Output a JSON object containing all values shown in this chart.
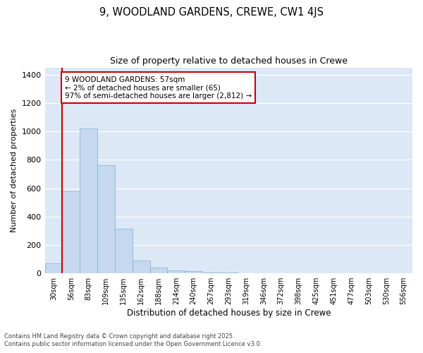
{
  "title1": "9, WOODLAND GARDENS, CREWE, CW1 4JS",
  "title2": "Size of property relative to detached houses in Crewe",
  "xlabel": "Distribution of detached houses by size in Crewe",
  "ylabel": "Number of detached properties",
  "bar_color": "#c5d8f0",
  "bar_edge_color": "#7bafd4",
  "background_color": "#dce8f5",
  "grid_color": "#ffffff",
  "annotation_box_color": "#cc0000",
  "annotation_text": "9 WOODLAND GARDENS: 57sqm\n← 2% of detached houses are smaller (65)\n97% of semi-detached houses are larger (2,812) →",
  "vline_color": "#cc0000",
  "vline_pos": 1,
  "bins": [
    "30sqm",
    "56sqm",
    "83sqm",
    "109sqm",
    "135sqm",
    "162sqm",
    "188sqm",
    "214sqm",
    "240sqm",
    "267sqm",
    "293sqm",
    "319sqm",
    "346sqm",
    "372sqm",
    "398sqm",
    "425sqm",
    "451sqm",
    "477sqm",
    "503sqm",
    "530sqm",
    "556sqm"
  ],
  "values": [
    70,
    580,
    1020,
    760,
    315,
    90,
    42,
    20,
    18,
    5,
    5,
    0,
    0,
    0,
    0,
    0,
    0,
    0,
    0,
    0,
    0
  ],
  "ylim": [
    0,
    1450
  ],
  "yticks": [
    0,
    200,
    400,
    600,
    800,
    1000,
    1200,
    1400
  ],
  "footer1": "Contains HM Land Registry data © Crown copyright and database right 2025.",
  "footer2": "Contains public sector information licensed under the Open Government Licence v3.0."
}
